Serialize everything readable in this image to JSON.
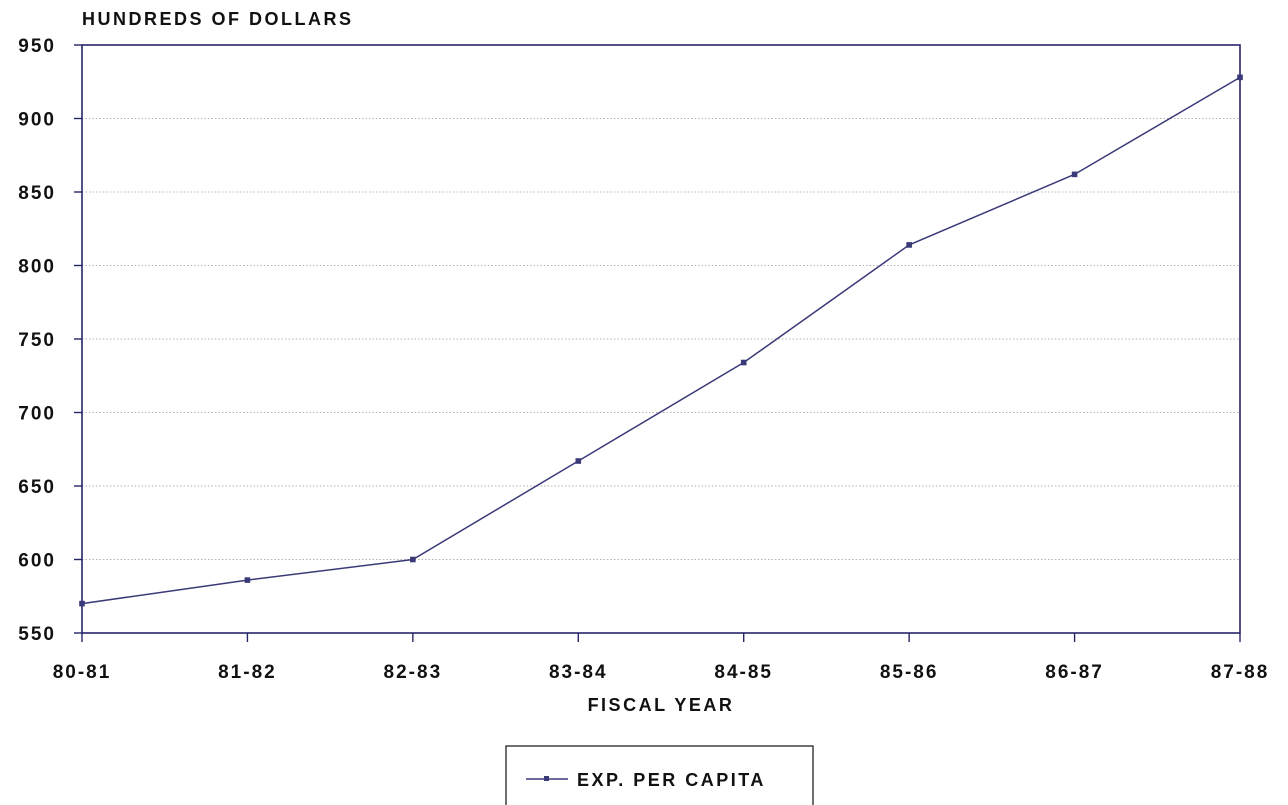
{
  "chart_data": {
    "type": "line",
    "title": "",
    "ylabel": "HUNDREDS OF DOLLARS",
    "xlabel": "FISCAL YEAR",
    "categories": [
      "80-81",
      "81-82",
      "82-83",
      "83-84",
      "84-85",
      "85-86",
      "86-87",
      "87-88"
    ],
    "series": [
      {
        "name": "EXP. PER CAPITA",
        "values": [
          570,
          586,
          600,
          667,
          734,
          814,
          862,
          928
        ]
      }
    ],
    "ylim": [
      550,
      950
    ],
    "yticks": [
      550,
      600,
      650,
      700,
      750,
      800,
      850,
      900,
      950
    ],
    "grid": "horizontal-dotted",
    "legend_position": "bottom-center",
    "colors": {
      "line": "#3a3a78",
      "axis": "#26266a",
      "grid": "#9a9a9a",
      "text": "#111111"
    }
  }
}
